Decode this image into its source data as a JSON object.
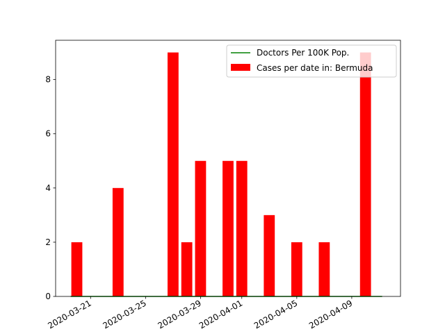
{
  "chart_data": {
    "type": "bar",
    "categories": [
      "2020-03-20",
      "2020-03-21",
      "2020-03-22",
      "2020-03-23",
      "2020-03-24",
      "2020-03-25",
      "2020-03-26",
      "2020-03-27",
      "2020-03-28",
      "2020-03-29",
      "2020-03-30",
      "2020-03-31",
      "2020-04-01",
      "2020-04-02",
      "2020-04-03",
      "2020-04-04",
      "2020-04-05",
      "2020-04-06",
      "2020-04-07",
      "2020-04-08",
      "2020-04-09",
      "2020-04-10"
    ],
    "series": [
      {
        "name": "Cases per date in: Bermuda",
        "kind": "bar",
        "color": "#ff0000",
        "values": [
          2,
          0,
          0,
          4,
          0,
          0,
          0,
          9,
          2,
          5,
          0,
          5,
          5,
          0,
          3,
          0,
          2,
          0,
          2,
          0,
          0,
          9
        ]
      },
      {
        "name": "Doctors Per 100K Pop.",
        "kind": "line",
        "color": "#008000",
        "values": [
          0,
          0,
          0,
          0,
          0,
          0,
          0,
          0,
          0,
          0,
          0,
          0,
          0,
          0,
          0,
          0,
          0,
          0,
          0,
          0,
          0,
          0
        ]
      }
    ],
    "x_ticks": [
      "2020-03-21",
      "2020-03-25",
      "2020-03-29",
      "2020-04-01",
      "2020-04-05",
      "2020-04-09"
    ],
    "y_ticks": [
      0,
      2,
      4,
      6,
      8
    ],
    "ylim": [
      0,
      9.45
    ],
    "title": "",
    "xlabel": "",
    "ylabel": "",
    "grid": false,
    "legend_position": "upper right"
  }
}
